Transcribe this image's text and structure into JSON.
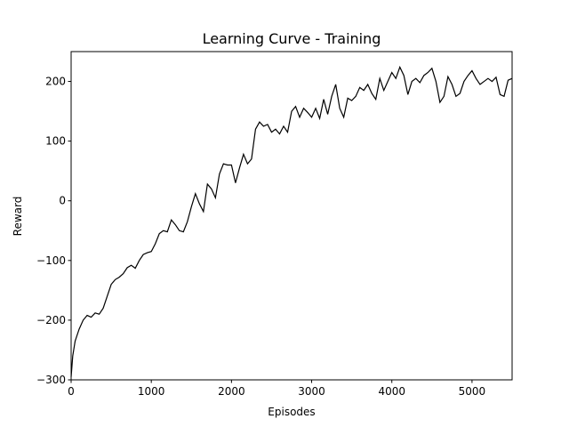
{
  "chart_data": {
    "type": "line",
    "title": "Learning Curve - Training",
    "xlabel": "Episodes",
    "ylabel": "Reward",
    "x": [
      0,
      20,
      50,
      100,
      150,
      200,
      250,
      300,
      350,
      400,
      450,
      500,
      550,
      600,
      650,
      700,
      750,
      800,
      850,
      900,
      950,
      1000,
      1050,
      1100,
      1150,
      1200,
      1250,
      1300,
      1350,
      1400,
      1450,
      1500,
      1550,
      1600,
      1650,
      1700,
      1750,
      1800,
      1850,
      1900,
      1950,
      2000,
      2050,
      2100,
      2150,
      2200,
      2250,
      2300,
      2350,
      2400,
      2450,
      2500,
      2550,
      2600,
      2650,
      2700,
      2750,
      2800,
      2850,
      2900,
      2950,
      3000,
      3050,
      3100,
      3150,
      3200,
      3250,
      3300,
      3350,
      3400,
      3450,
      3500,
      3550,
      3600,
      3650,
      3700,
      3750,
      3800,
      3850,
      3900,
      3950,
      4000,
      4050,
      4100,
      4150,
      4200,
      4250,
      4300,
      4350,
      4400,
      4450,
      4500,
      4550,
      4600,
      4650,
      4700,
      4750,
      4800,
      4850,
      4900,
      4950,
      5000,
      5050,
      5100,
      5150,
      5200,
      5250,
      5300,
      5350,
      5400,
      5450,
      5500
    ],
    "series": [
      {
        "color": "#000000",
        "values": [
          -295,
          -260,
          -235,
          -215,
          -200,
          -192,
          -195,
          -188,
          -190,
          -180,
          -160,
          -140,
          -132,
          -128,
          -122,
          -112,
          -108,
          -113,
          -100,
          -90,
          -87,
          -85,
          -72,
          -55,
          -50,
          -52,
          -32,
          -40,
          -50,
          -52,
          -35,
          -10,
          12,
          -5,
          -18,
          28,
          20,
          5,
          45,
          62,
          60,
          60,
          30,
          55,
          78,
          62,
          70,
          120,
          132,
          125,
          128,
          115,
          120,
          112,
          125,
          115,
          150,
          158,
          140,
          155,
          148,
          140,
          155,
          138,
          170,
          145,
          175,
          195,
          155,
          140,
          172,
          168,
          175,
          190,
          185,
          195,
          180,
          170,
          205,
          185,
          200,
          215,
          205,
          224,
          210,
          178,
          200,
          205,
          198,
          210,
          215,
          222,
          200,
          165,
          175,
          208,
          195,
          175,
          180,
          200,
          210,
          218,
          205,
          195,
          200,
          205,
          200,
          207,
          178,
          175,
          202,
          205
        ]
      }
    ],
    "xlim": [
      0,
      5500
    ],
    "ylim": [
      -300,
      250
    ],
    "xticks": [
      0,
      1000,
      2000,
      3000,
      4000,
      5000
    ],
    "yticks": [
      {
        "value": -300,
        "label": "−300"
      },
      {
        "value": -200,
        "label": "−200"
      },
      {
        "value": -100,
        "label": "−100"
      },
      0,
      100,
      200
    ]
  }
}
